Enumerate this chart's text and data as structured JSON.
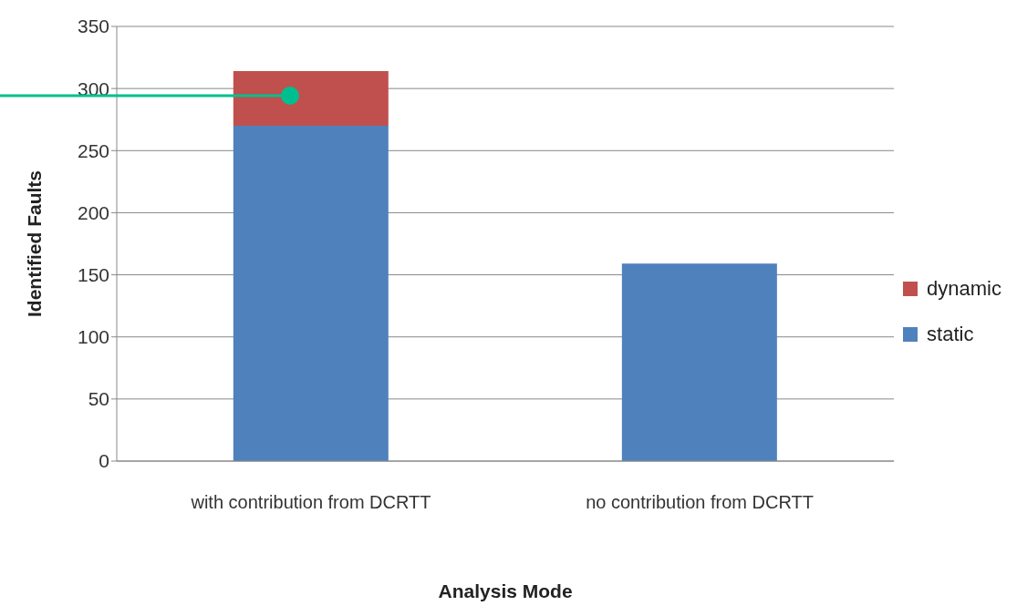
{
  "chart_data": {
    "type": "bar",
    "stacked": true,
    "xlabel": "Analysis Mode",
    "ylabel": "Identified Faults",
    "categories": [
      "with contribution from DCRTT",
      "no contribution from DCRTT"
    ],
    "series": [
      {
        "name": "static",
        "color": "#4f81bd",
        "values": [
          270,
          159
        ]
      },
      {
        "name": "dynamic",
        "color": "#c0504d",
        "values": [
          44,
          0
        ]
      }
    ],
    "ylim": [
      0,
      350
    ],
    "yticks": [
      0,
      50,
      100,
      150,
      200,
      250,
      300,
      350
    ],
    "grid": "y",
    "legend": "right"
  }
}
